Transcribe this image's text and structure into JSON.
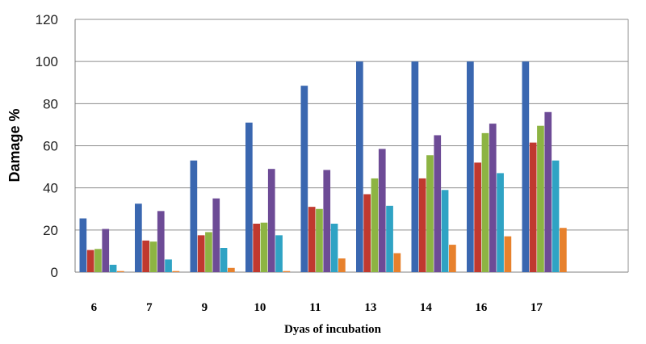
{
  "chart_data": {
    "type": "bar",
    "title": "",
    "xlabel": "Dyas of incubation",
    "ylabel": "Damage %",
    "ylim": [
      0,
      120
    ],
    "yticks": [
      0,
      20,
      40,
      60,
      80,
      100,
      120
    ],
    "grid": "horizontal",
    "legend": "none",
    "categories": [
      "6",
      "7",
      "9",
      "10",
      "11",
      "13",
      "14",
      "16",
      "17"
    ],
    "series": [
      {
        "color": "#3a67b0",
        "values": [
          25.5,
          32.5,
          53,
          71,
          88.5,
          100,
          100,
          100,
          100
        ]
      },
      {
        "color": "#c0392f",
        "values": [
          10.5,
          15,
          17.5,
          23,
          31,
          37,
          44.5,
          52,
          61.5
        ]
      },
      {
        "color": "#8db443",
        "values": [
          11,
          14.5,
          19,
          23.5,
          30,
          44.5,
          55.5,
          66,
          69.5
        ]
      },
      {
        "color": "#6d4b96",
        "values": [
          20.5,
          29,
          35,
          49,
          48.5,
          58.5,
          65,
          70.5,
          76
        ]
      },
      {
        "color": "#2fa3c4",
        "values": [
          3.5,
          6,
          11.5,
          17.5,
          23,
          31.5,
          39,
          47,
          53
        ]
      },
      {
        "color": "#e7812d",
        "values": [
          0.5,
          0.5,
          2,
          0.5,
          6.5,
          9,
          13,
          17,
          21
        ]
      }
    ]
  }
}
